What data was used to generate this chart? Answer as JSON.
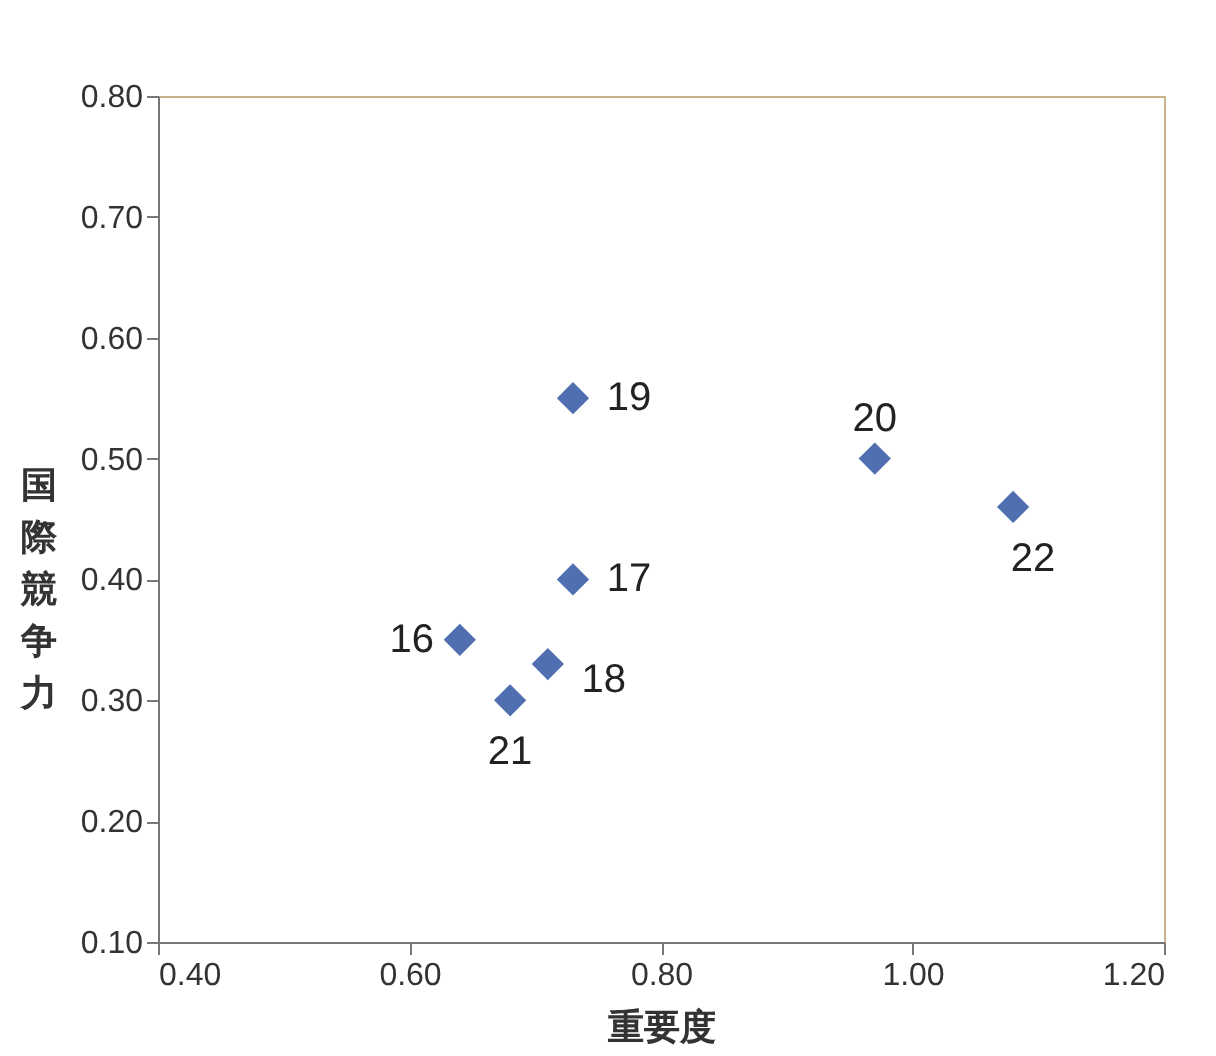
{
  "chart_data": {
    "type": "scatter",
    "xlabel": "重要度",
    "ylabel": "国際競争力",
    "x": [
      0.64,
      0.73,
      0.71,
      0.73,
      0.97,
      0.68,
      1.08
    ],
    "values": [
      0.35,
      0.4,
      0.33,
      0.55,
      0.5,
      0.3,
      0.46
    ],
    "color": "#4f6fb0",
    "marker": "diamond",
    "xlim": [
      0.4,
      1.2
    ],
    "xticks": [
      {
        "value": 0.4,
        "label": "0.40"
      },
      {
        "value": 0.6,
        "label": "0.60"
      },
      {
        "value": 0.8,
        "label": "0.80"
      },
      {
        "value": 1.0,
        "label": "1.00"
      },
      {
        "value": 1.2,
        "label": "1.20"
      }
    ],
    "ylim": [
      0.1,
      0.8
    ],
    "yticks": [
      {
        "value": 0.1,
        "label": "0.10"
      },
      {
        "value": 0.2,
        "label": "0.20"
      },
      {
        "value": 0.3,
        "label": "0.30"
      },
      {
        "value": 0.4,
        "label": "0.40"
      },
      {
        "value": 0.5,
        "label": "0.50"
      },
      {
        "value": 0.6,
        "label": "0.60"
      },
      {
        "value": 0.7,
        "label": "0.70"
      },
      {
        "value": 0.8,
        "label": "0.80"
      }
    ],
    "annotations": [
      {
        "text": "16",
        "x": 0.64,
        "y": 0.35
      },
      {
        "text": "17",
        "x": 0.73,
        "y": 0.4
      },
      {
        "text": "18",
        "x": 0.71,
        "y": 0.33
      },
      {
        "text": "19",
        "x": 0.73,
        "y": 0.55
      },
      {
        "text": "20",
        "x": 0.97,
        "y": 0.5
      },
      {
        "text": "21",
        "x": 0.68,
        "y": 0.3
      },
      {
        "text": "22",
        "x": 1.08,
        "y": 0.46
      }
    ],
    "grid": false
  }
}
